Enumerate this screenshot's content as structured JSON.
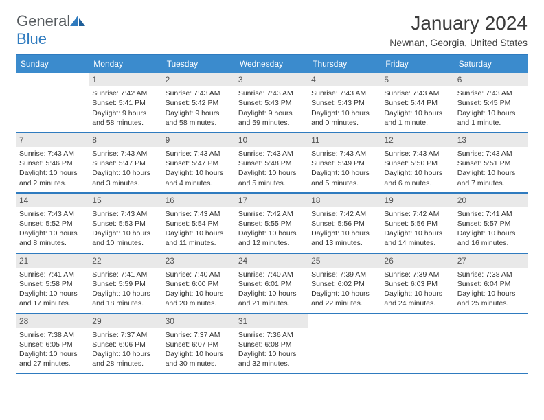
{
  "brand": {
    "name_a": "General",
    "name_b": "Blue"
  },
  "header": {
    "title": "January 2024",
    "location": "Newnan, Georgia, United States"
  },
  "colors": {
    "accent": "#2f7bbf",
    "dow_bg": "#3b8bcd",
    "dow_text": "#ffffff",
    "daynum_bg": "#e9e9e9",
    "text": "#333333",
    "border": "#2f7bbf"
  },
  "dow": [
    "Sunday",
    "Monday",
    "Tuesday",
    "Wednesday",
    "Thursday",
    "Friday",
    "Saturday"
  ],
  "weeks": [
    [
      null,
      {
        "n": "1",
        "sr": "7:42 AM",
        "ss": "5:41 PM",
        "dl": "9 hours and 58 minutes."
      },
      {
        "n": "2",
        "sr": "7:43 AM",
        "ss": "5:42 PM",
        "dl": "9 hours and 58 minutes."
      },
      {
        "n": "3",
        "sr": "7:43 AM",
        "ss": "5:43 PM",
        "dl": "9 hours and 59 minutes."
      },
      {
        "n": "4",
        "sr": "7:43 AM",
        "ss": "5:43 PM",
        "dl": "10 hours and 0 minutes."
      },
      {
        "n": "5",
        "sr": "7:43 AM",
        "ss": "5:44 PM",
        "dl": "10 hours and 1 minute."
      },
      {
        "n": "6",
        "sr": "7:43 AM",
        "ss": "5:45 PM",
        "dl": "10 hours and 1 minute."
      }
    ],
    [
      {
        "n": "7",
        "sr": "7:43 AM",
        "ss": "5:46 PM",
        "dl": "10 hours and 2 minutes."
      },
      {
        "n": "8",
        "sr": "7:43 AM",
        "ss": "5:47 PM",
        "dl": "10 hours and 3 minutes."
      },
      {
        "n": "9",
        "sr": "7:43 AM",
        "ss": "5:47 PM",
        "dl": "10 hours and 4 minutes."
      },
      {
        "n": "10",
        "sr": "7:43 AM",
        "ss": "5:48 PM",
        "dl": "10 hours and 5 minutes."
      },
      {
        "n": "11",
        "sr": "7:43 AM",
        "ss": "5:49 PM",
        "dl": "10 hours and 5 minutes."
      },
      {
        "n": "12",
        "sr": "7:43 AM",
        "ss": "5:50 PM",
        "dl": "10 hours and 6 minutes."
      },
      {
        "n": "13",
        "sr": "7:43 AM",
        "ss": "5:51 PM",
        "dl": "10 hours and 7 minutes."
      }
    ],
    [
      {
        "n": "14",
        "sr": "7:43 AM",
        "ss": "5:52 PM",
        "dl": "10 hours and 8 minutes."
      },
      {
        "n": "15",
        "sr": "7:43 AM",
        "ss": "5:53 PM",
        "dl": "10 hours and 10 minutes."
      },
      {
        "n": "16",
        "sr": "7:43 AM",
        "ss": "5:54 PM",
        "dl": "10 hours and 11 minutes."
      },
      {
        "n": "17",
        "sr": "7:42 AM",
        "ss": "5:55 PM",
        "dl": "10 hours and 12 minutes."
      },
      {
        "n": "18",
        "sr": "7:42 AM",
        "ss": "5:56 PM",
        "dl": "10 hours and 13 minutes."
      },
      {
        "n": "19",
        "sr": "7:42 AM",
        "ss": "5:56 PM",
        "dl": "10 hours and 14 minutes."
      },
      {
        "n": "20",
        "sr": "7:41 AM",
        "ss": "5:57 PM",
        "dl": "10 hours and 16 minutes."
      }
    ],
    [
      {
        "n": "21",
        "sr": "7:41 AM",
        "ss": "5:58 PM",
        "dl": "10 hours and 17 minutes."
      },
      {
        "n": "22",
        "sr": "7:41 AM",
        "ss": "5:59 PM",
        "dl": "10 hours and 18 minutes."
      },
      {
        "n": "23",
        "sr": "7:40 AM",
        "ss": "6:00 PM",
        "dl": "10 hours and 20 minutes."
      },
      {
        "n": "24",
        "sr": "7:40 AM",
        "ss": "6:01 PM",
        "dl": "10 hours and 21 minutes."
      },
      {
        "n": "25",
        "sr": "7:39 AM",
        "ss": "6:02 PM",
        "dl": "10 hours and 22 minutes."
      },
      {
        "n": "26",
        "sr": "7:39 AM",
        "ss": "6:03 PM",
        "dl": "10 hours and 24 minutes."
      },
      {
        "n": "27",
        "sr": "7:38 AM",
        "ss": "6:04 PM",
        "dl": "10 hours and 25 minutes."
      }
    ],
    [
      {
        "n": "28",
        "sr": "7:38 AM",
        "ss": "6:05 PM",
        "dl": "10 hours and 27 minutes."
      },
      {
        "n": "29",
        "sr": "7:37 AM",
        "ss": "6:06 PM",
        "dl": "10 hours and 28 minutes."
      },
      {
        "n": "30",
        "sr": "7:37 AM",
        "ss": "6:07 PM",
        "dl": "10 hours and 30 minutes."
      },
      {
        "n": "31",
        "sr": "7:36 AM",
        "ss": "6:08 PM",
        "dl": "10 hours and 32 minutes."
      },
      null,
      null,
      null
    ]
  ],
  "labels": {
    "sunrise": "Sunrise: ",
    "sunset": "Sunset: ",
    "daylight": "Daylight: "
  }
}
